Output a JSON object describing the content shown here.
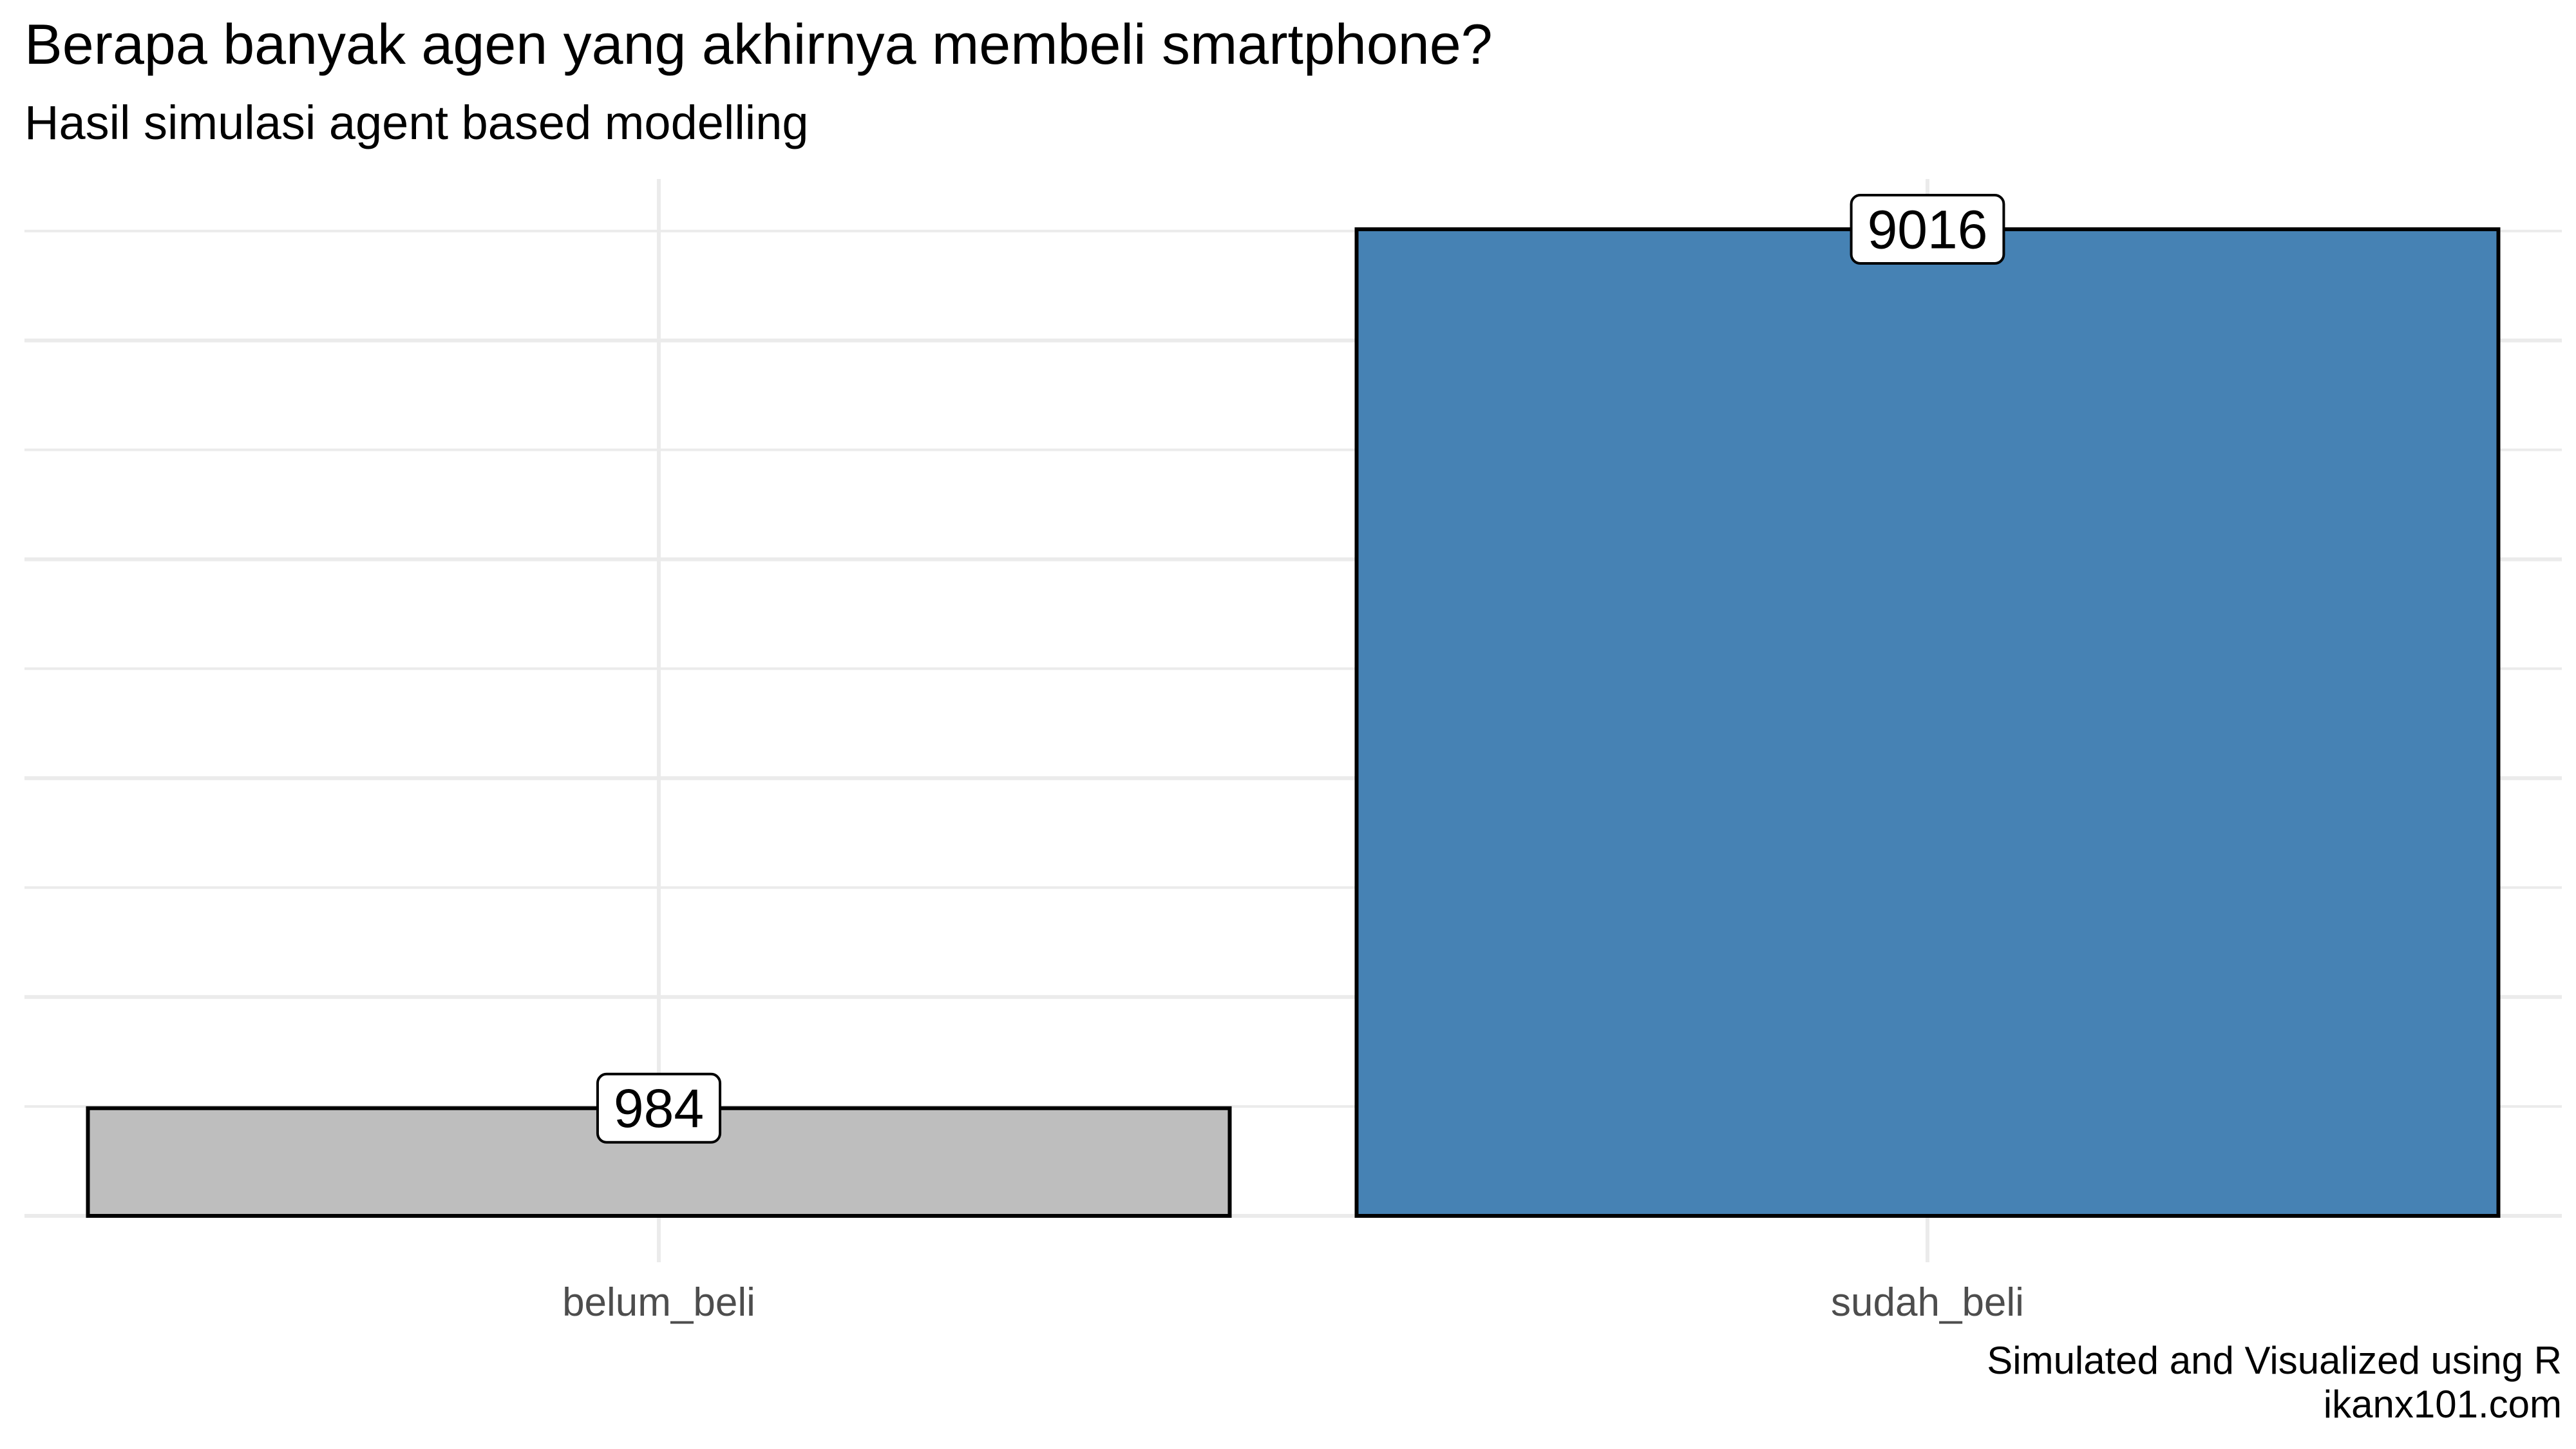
{
  "chart_data": {
    "type": "bar",
    "title": "Berapa banyak agen yang akhirnya membeli smartphone?",
    "subtitle": "Hasil simulasi agent based modelling",
    "categories": [
      "belum_beli",
      "sudah_beli"
    ],
    "values": [
      984,
      9016
    ],
    "data_labels": [
      "984",
      "9016"
    ],
    "bar_colors": [
      "#BEBEBE",
      "#4682B4"
    ],
    "bar_outline_color": "#000000",
    "ylim": [
      0,
      9400
    ],
    "y_axis_labels_shown": false,
    "grid": true,
    "grid_color": "#EBEBEB",
    "legend": "none",
    "caption": [
      "Simulated and Visualized using R",
      "ikanx101.com"
    ]
  }
}
